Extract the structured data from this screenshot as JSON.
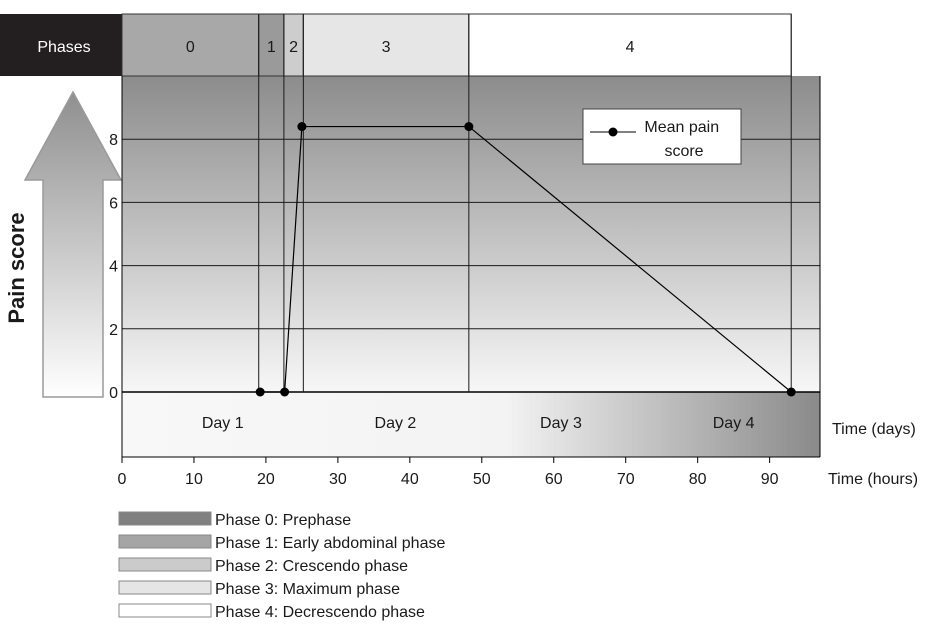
{
  "chart_data": {
    "type": "line",
    "ylabel": "Pain score",
    "yticks": [
      0,
      2,
      4,
      6,
      8
    ],
    "ylim": [
      0,
      10.3
    ],
    "xlim": [
      0,
      97
    ],
    "xticks": [
      0,
      10,
      20,
      30,
      40,
      50,
      60,
      70,
      80,
      90
    ],
    "x_unit_label": "Time (hours)",
    "day_unit_label": "Time (days)",
    "days": [
      {
        "label": "Day 1",
        "x": 14
      },
      {
        "label": "Day 2",
        "x": 38
      },
      {
        "label": "Day 3",
        "x": 61
      },
      {
        "label": "Day 4",
        "x": 85
      }
    ],
    "phase_header_label": "Phases",
    "phases": [
      {
        "label": "0",
        "start": 0,
        "end": 19,
        "color": "#a8a8a8"
      },
      {
        "label": "1",
        "start": 19,
        "end": 22.5,
        "color": "#9a9a9a"
      },
      {
        "label": "2",
        "start": 22.5,
        "end": 25.2,
        "color": "#cdcdcd"
      },
      {
        "label": "3",
        "start": 25.2,
        "end": 48.2,
        "color": "#e6e6e6"
      },
      {
        "label": "4",
        "start": 48.2,
        "end": 93,
        "color": "#ffffff"
      }
    ],
    "series": [
      {
        "name": "Mean pain score",
        "x": [
          19.2,
          22.6,
          25.0,
          48.2,
          93.0
        ],
        "y": [
          0,
          0,
          8.4,
          8.4,
          0
        ]
      }
    ],
    "legend_position": "top-right",
    "phase_legend": [
      {
        "label": "Phase 0: Prephase",
        "color": "#808080"
      },
      {
        "label": "Phase 1: Early abdominal phase",
        "color": "#a5a5a5"
      },
      {
        "label": "Phase 2: Crescendo phase",
        "color": "#cbcbcb"
      },
      {
        "label": "Phase 3: Maximum phase",
        "color": "#e5e5e5"
      },
      {
        "label": "Phase 4: Decrescendo phase",
        "color": "#ffffff"
      }
    ]
  }
}
